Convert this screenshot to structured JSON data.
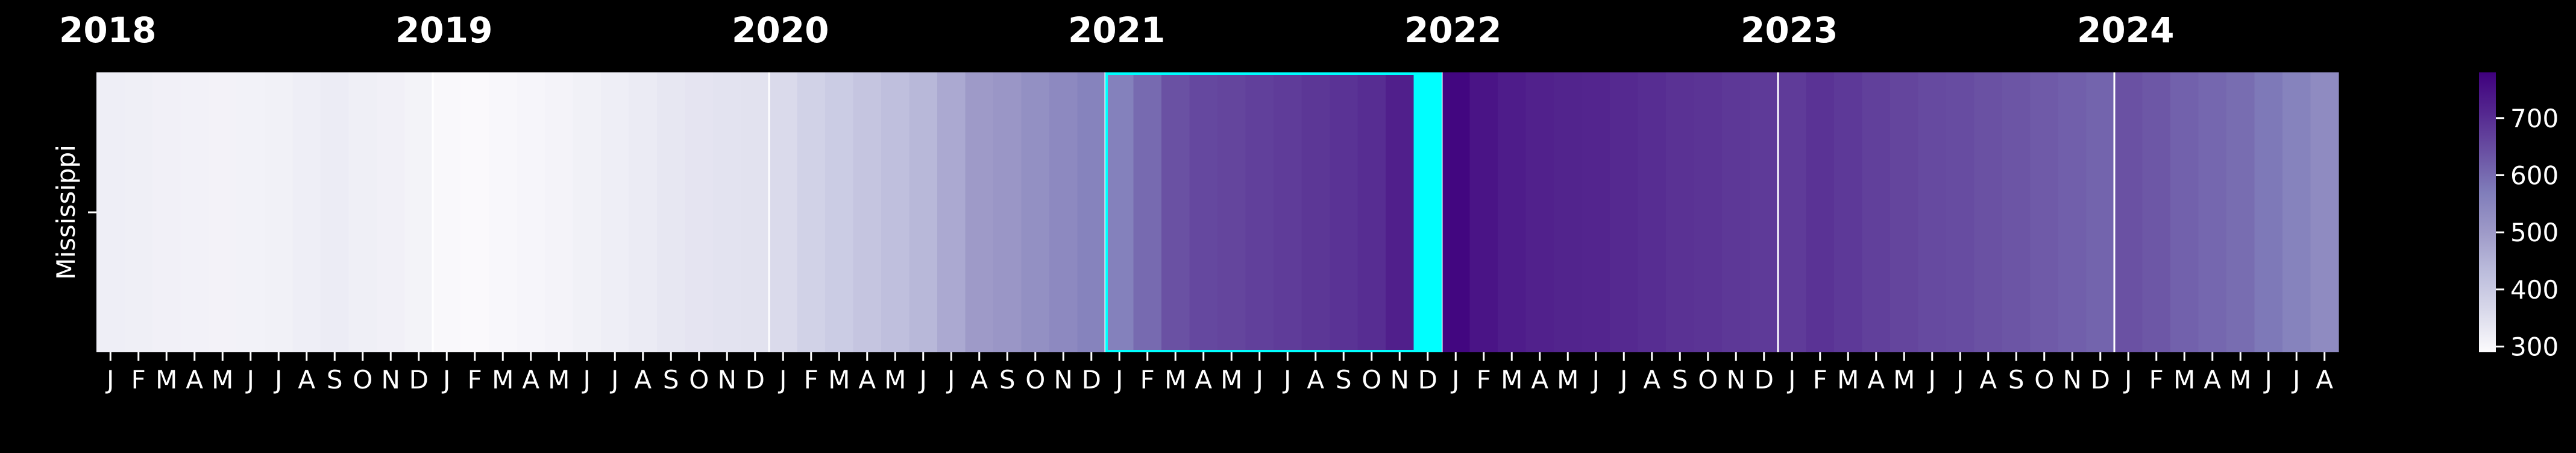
{
  "chart_data": {
    "type": "heatmap",
    "title": "",
    "xlabel": "",
    "ylabel": "",
    "rows": [
      "Mississippi"
    ],
    "years": [
      "2018",
      "2019",
      "2020",
      "2021",
      "2022",
      "2023",
      "2024"
    ],
    "month_labels": [
      "J",
      "F",
      "M",
      "A",
      "M",
      "J",
      "J",
      "A",
      "S",
      "O",
      "N",
      "D"
    ],
    "months_shown": 80,
    "values": [
      318,
      316,
      313,
      311,
      309,
      310,
      312,
      318,
      322,
      316,
      313,
      308,
      296,
      295,
      298,
      302,
      306,
      312,
      318,
      325,
      333,
      338,
      341,
      344,
      360,
      380,
      395,
      410,
      424,
      440,
      470,
      500,
      510,
      525,
      540,
      555,
      560,
      600,
      640,
      655,
      660,
      668,
      675,
      684,
      690,
      700,
      725,
      748,
      770,
      745,
      730,
      720,
      716,
      713,
      706,
      700,
      692,
      688,
      682,
      678,
      676,
      690,
      680,
      668,
      660,
      652,
      648,
      640,
      633,
      625,
      617,
      610,
      640,
      630,
      614,
      605,
      596,
      576,
      555,
      536
    ],
    "colorbar": {
      "min": 290,
      "max": 780,
      "ticks": [
        300,
        400,
        500,
        600,
        700
      ],
      "tick_labels": [
        "300",
        "400",
        "500",
        "600",
        "700"
      ],
      "colors": [
        "#fcfbfd",
        "#dadaeb",
        "#bcbddc",
        "#9e9ac8",
        "#807dba",
        "#6a51a3",
        "#54278f",
        "#3f007d"
      ]
    },
    "highlight": {
      "start_index": 36,
      "end_index": 47,
      "color": "#00ffff"
    },
    "highlight_fill_index": 47,
    "year_dividers": [
      12,
      24,
      36,
      48,
      60,
      72
    ]
  }
}
